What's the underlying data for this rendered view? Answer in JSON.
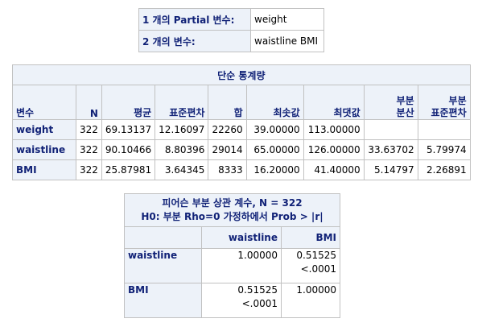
{
  "partial_info": {
    "rows": [
      {
        "label": "1 개의 Partial 변수:",
        "value": "weight"
      },
      {
        "label": "2 개의 변수:",
        "value": "waistline BMI"
      }
    ]
  },
  "simple_stats": {
    "title": "단순 통계량",
    "headers": [
      "변수",
      "N",
      "평균",
      "표준편차",
      "합",
      "최솟값",
      "최댓값",
      "부분 분산",
      "부분 표준편차"
    ],
    "header_lines": {
      "partial_var": [
        "부분",
        "분산"
      ],
      "partial_std": [
        "부분",
        "표준편차"
      ]
    },
    "rows": [
      {
        "var": "weight",
        "n": "322",
        "mean": "69.13137",
        "std": "12.16097",
        "sum": "22260",
        "min": "39.00000",
        "max": "113.00000",
        "pvar": "",
        "pstd": ""
      },
      {
        "var": "waistline",
        "n": "322",
        "mean": "90.10466",
        "std": "8.80396",
        "sum": "29014",
        "min": "65.00000",
        "max": "126.00000",
        "pvar": "33.63702",
        "pstd": "5.79974"
      },
      {
        "var": "BMI",
        "n": "322",
        "mean": "25.87981",
        "std": "3.64345",
        "sum": "8333",
        "min": "16.20000",
        "max": "41.40000",
        "pvar": "5.14797",
        "pstd": "2.26891"
      }
    ]
  },
  "partial_corr": {
    "title_line1": "피어슨 부분 상관 계수, N = 322",
    "title_line2": "H0: 부분 Rho=0 가정하에서 Prob > |r|",
    "columns": [
      "waistline",
      "BMI"
    ],
    "rows": [
      {
        "var": "waistline",
        "cells": [
          {
            "r": "1.00000",
            "p": ""
          },
          {
            "r": "0.51525",
            "p": "<.0001"
          }
        ]
      },
      {
        "var": "BMI",
        "cells": [
          {
            "r": "0.51525",
            "p": "<.0001"
          },
          {
            "r": "1.00000",
            "p": ""
          }
        ]
      }
    ]
  },
  "colors": {
    "header_bg": "#edf2f9",
    "header_text": "#112277",
    "border": "#c1c1c1"
  }
}
